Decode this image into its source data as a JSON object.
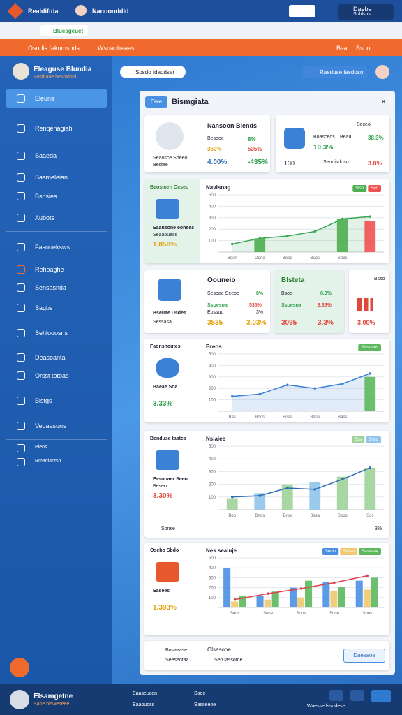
{
  "topbar": {
    "app": "Realdiftda",
    "tab": "Nanoooddld",
    "user": "Daebe",
    "user_sub": "Sohlsus"
  },
  "browser": {
    "tab": "Bluesgeuet"
  },
  "orangebar": {
    "left": "Osudis fakumsnds",
    "mid": "Wsnaoheaes",
    "right1": "Bsa",
    "right2": "Bsoo"
  },
  "sidebar": {
    "title": "Eleaguse Blundia",
    "subtitle": "Fostbaue hesoidstd",
    "items": [
      "Eleuns",
      "Renqenagiah",
      "Saaeda",
      "Sasmeleian",
      "Bsnsies",
      "Aubots",
      "Fasoueksws",
      "Rehoaghe",
      "Sensasnda",
      "Sagbs",
      "Sehlouosns",
      "Deasoanta",
      "Orsst totoas",
      "Blstgs",
      "Veoaasuns",
      "Pleos",
      "Rmadiantso"
    ]
  },
  "header": {
    "search": "Sosdo fdaodser",
    "button": "Raeduse fasdoso"
  },
  "panel": {
    "tag": "Owe",
    "title": "Bismgiata",
    "profile": {
      "name": "Nansoon Blends",
      "sub": "Seaosce Sdeeo",
      "sub2": "Bestae",
      "r1": "Beseoe",
      "r1v": "8%",
      "r2a": "360%",
      "r2b": "535%",
      "r3a": "4.00%",
      "r3b": "-435%"
    },
    "stat": {
      "label": "Boasceos",
      "label2": "Beau",
      "top": "Seceo",
      "v1": "38.3%",
      "v2": "10.3%",
      "v3": "130",
      "link": "Seodisdoso",
      "v4": "3.0%"
    },
    "cards": [
      {
        "title": "Oouneio",
        "a": "Sesoae Seeoe",
        "av": "8%",
        "b": "Ssoesoa",
        "bv": "535%",
        "c": "Eossuu",
        "cv": "3%",
        "d": "3535",
        "dv": "3.03%",
        "foot": "Bseuae Dsdes",
        "foot2": "Sessasa"
      },
      {
        "title": "Blsteta",
        "a": "Bsoe",
        "av": "8.3%",
        "b": "Ssoesoa",
        "bv": "8.35%",
        "c": "3095",
        "cv": "3.3%"
      },
      {
        "title": "Bsso",
        "a": "3.00%"
      }
    ],
    "sides": [
      {
        "title": "Beostoen Ocseo",
        "text": "Eaausone eonees",
        "text2": "Seaaouess",
        "value": "1.856%"
      },
      {
        "title": "Faonsnoutes",
        "text": "Baeae Soa",
        "value": "3.33%"
      },
      {
        "title": "Benduse tastes",
        "text": "Fasnoaer Seeo",
        "text2": "Beseo",
        "value": "3.30%",
        "legend": "Sonse"
      },
      {
        "title": "Osebo Sbdo",
        "text": "Easees",
        "value": "1.393%"
      }
    ],
    "footer": {
      "a": "Bosaaase",
      "b": "Seeseotaa",
      "c": "Olsesooe",
      "d": "Seo lassome",
      "button": "Daessoe"
    }
  },
  "charts": [
    {
      "type": "combo",
      "title": "Navisoag",
      "categories": [
        "Boon",
        "Oone",
        "Booe",
        "Buos",
        "Soos",
        null
      ],
      "ylim": [
        0,
        500
      ],
      "yticks": [
        100,
        200,
        300,
        400,
        500
      ],
      "series": [
        {
          "type": "area",
          "color": "#3aa757",
          "values": [
            70,
            120,
            140,
            180,
            290,
            310
          ]
        },
        {
          "type": "bar",
          "name": "Stsn",
          "color": "#4caf50",
          "values": [
            null,
            120,
            null,
            null,
            290,
            null
          ]
        },
        {
          "type": "bar",
          "name": "Seo",
          "color": "#ef5350",
          "values": [
            null,
            null,
            null,
            null,
            null,
            270
          ]
        }
      ]
    },
    {
      "type": "combo",
      "title": "Breos",
      "categories": [
        "Bas",
        "Boos",
        "Boss",
        "Bsoe",
        "Bass",
        null
      ],
      "ylim": [
        0,
        500
      ],
      "yticks": [
        100,
        200,
        300,
        400,
        500
      ],
      "series": [
        {
          "type": "area",
          "color": "#3b82d6",
          "values": [
            130,
            150,
            230,
            200,
            240,
            330
          ]
        },
        {
          "type": "bar",
          "name": "Stssouns",
          "color": "#5cb85c",
          "values": [
            null,
            null,
            null,
            null,
            null,
            300
          ]
        }
      ]
    },
    {
      "type": "combo",
      "title": "Nsiaiee",
      "categories": [
        "Boo",
        "Bnos",
        "Bros",
        "Bssa",
        "Soos",
        "Sos"
      ],
      "ylim": [
        0,
        500
      ],
      "yticks": [
        100,
        200,
        300,
        400,
        500
      ],
      "series": [
        {
          "type": "bar",
          "name": "Sas",
          "color": "#9ed39a",
          "values": [
            90,
            null,
            200,
            null,
            260,
            330
          ]
        },
        {
          "type": "bar",
          "name": "Snso",
          "color": "#90c4ea",
          "values": [
            null,
            130,
            null,
            220,
            null,
            null
          ]
        },
        {
          "type": "line",
          "color": "#2f6db5",
          "values": [
            100,
            110,
            170,
            160,
            240,
            330
          ]
        }
      ],
      "note": "3%"
    },
    {
      "type": "combo",
      "title": "Nes seaiuje",
      "categories": [
        "Soos",
        "Sooe",
        "Soos",
        "Sone",
        "Soos"
      ],
      "ylim": [
        0,
        500
      ],
      "yticks": [
        100,
        200,
        300,
        400,
        500
      ],
      "series": [
        {
          "type": "bar",
          "name": "Seuio",
          "color": "#4a90e2",
          "values": [
            400,
            120,
            200,
            260,
            270
          ]
        },
        {
          "type": "bar",
          "name": "Sesso",
          "color": "#f0c870",
          "values": [
            60,
            80,
            100,
            170,
            180
          ]
        },
        {
          "type": "bar",
          "name": "Sanaaoe",
          "color": "#5cb85c",
          "values": [
            120,
            160,
            270,
            210,
            300
          ]
        },
        {
          "type": "line",
          "color": "#d9434b",
          "values": [
            80,
            140,
            190,
            250,
            320
          ]
        }
      ]
    }
  ],
  "bottombar": {
    "name": "Elsamgetne",
    "sub": "Saoe hlsweseee",
    "a": "Eaaseucon",
    "a2": "Eaaouoss",
    "b": "Saee",
    "b2": "Sasseeoe",
    "c": "Waesse lssddese"
  }
}
